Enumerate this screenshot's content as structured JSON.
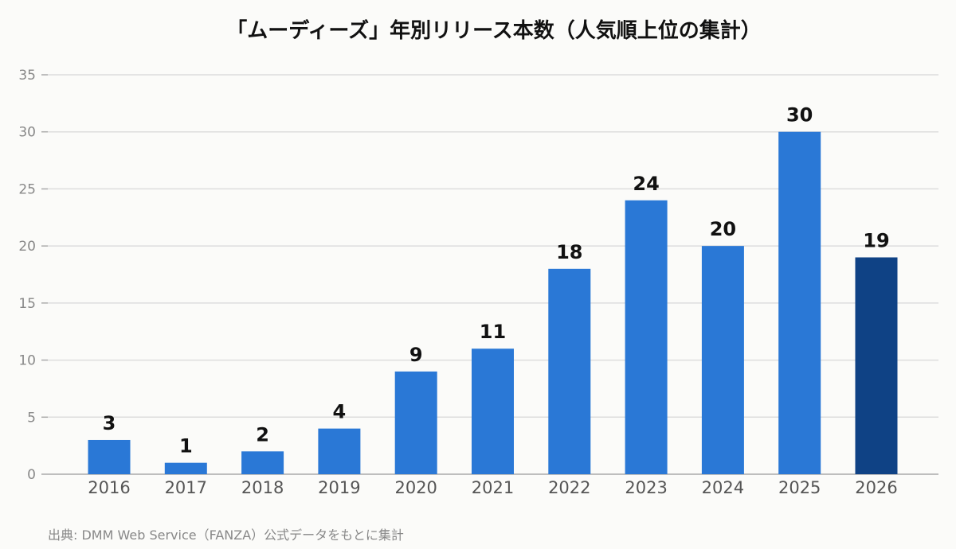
{
  "chart_data": {
    "type": "bar",
    "title": "「ムーディーズ」年別リリース本数（人気順上位の集計）",
    "categories": [
      "2016",
      "2017",
      "2018",
      "2019",
      "2020",
      "2021",
      "2022",
      "2023",
      "2024",
      "2025",
      "2026"
    ],
    "values": [
      3,
      1,
      2,
      4,
      9,
      11,
      18,
      24,
      20,
      30,
      19
    ],
    "xlabel": "",
    "ylabel": "",
    "ylim": [
      0,
      35
    ],
    "yticks": [
      0,
      5,
      10,
      15,
      20,
      25,
      30,
      35
    ],
    "grid": true,
    "colors": {
      "bar": "#2a78d6",
      "highlight": "#0f4285",
      "grid": "#dddddd",
      "axis": "#aaaaaa"
    },
    "highlight_category": "2026"
  },
  "source_note": "出典: DMM Web Service（FANZA）公式データをもとに集計"
}
